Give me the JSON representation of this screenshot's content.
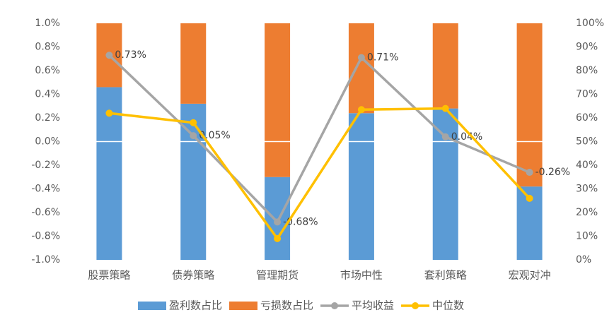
{
  "chart_data": {
    "type": "combo",
    "categories": [
      "股票策略",
      "债券策略",
      "管理期货",
      "市场中性",
      "套利策略",
      "宏观对冲"
    ],
    "series": [
      {
        "name": "盈利数占比",
        "type": "bar",
        "axis": "y2",
        "color": "#5b9bd5",
        "values": [
          73,
          66,
          35,
          62,
          64,
          31
        ]
      },
      {
        "name": "亏损数占比",
        "type": "bar",
        "axis": "y2",
        "color": "#ed7d31",
        "values": [
          27,
          34,
          65,
          38,
          36,
          69
        ]
      },
      {
        "name": "平均收益",
        "type": "line",
        "color": "#a5a5a5",
        "values": [
          0.73,
          0.05,
          -0.68,
          0.71,
          0.04,
          -0.26
        ],
        "value_labels": [
          "0.73%",
          "0.05%",
          "-0.68%",
          "0.71%",
          "0.04%",
          "-0.26%"
        ]
      },
      {
        "name": "中位数",
        "type": "line",
        "color": "#ffc000",
        "values": [
          0.24,
          0.16,
          -0.82,
          0.27,
          0.28,
          -0.48
        ]
      }
    ],
    "ylim": [
      -1.0,
      1.0
    ],
    "yticks": [
      {
        "value": -1.0,
        "label": "-1.0%"
      },
      {
        "value": -0.8,
        "label": "-0.8%"
      },
      {
        "value": -0.6,
        "label": "-0.6%"
      },
      {
        "value": -0.4,
        "label": "-0.4%"
      },
      {
        "value": -0.2,
        "label": "-0.2%"
      },
      {
        "value": 0.0,
        "label": "0.0%"
      },
      {
        "value": 0.2,
        "label": "0.2%"
      },
      {
        "value": 0.4,
        "label": "0.4%"
      },
      {
        "value": 0.6,
        "label": "0.6%"
      },
      {
        "value": 0.8,
        "label": "0.8%"
      },
      {
        "value": 1.0,
        "label": "1.0%"
      }
    ],
    "y2lim": [
      0,
      100
    ],
    "y2ticks": [
      {
        "value": 0,
        "label": "0%"
      },
      {
        "value": 10,
        "label": "10%"
      },
      {
        "value": 20,
        "label": "20%"
      },
      {
        "value": 30,
        "label": "30%"
      },
      {
        "value": 40,
        "label": "40%"
      },
      {
        "value": 50,
        "label": "50%"
      },
      {
        "value": 60,
        "label": "60%"
      },
      {
        "value": 70,
        "label": "70%"
      },
      {
        "value": 80,
        "label": "80%"
      },
      {
        "value": 90,
        "label": "90%"
      },
      {
        "value": 100,
        "label": "100%"
      }
    ],
    "legend": "bottom"
  }
}
